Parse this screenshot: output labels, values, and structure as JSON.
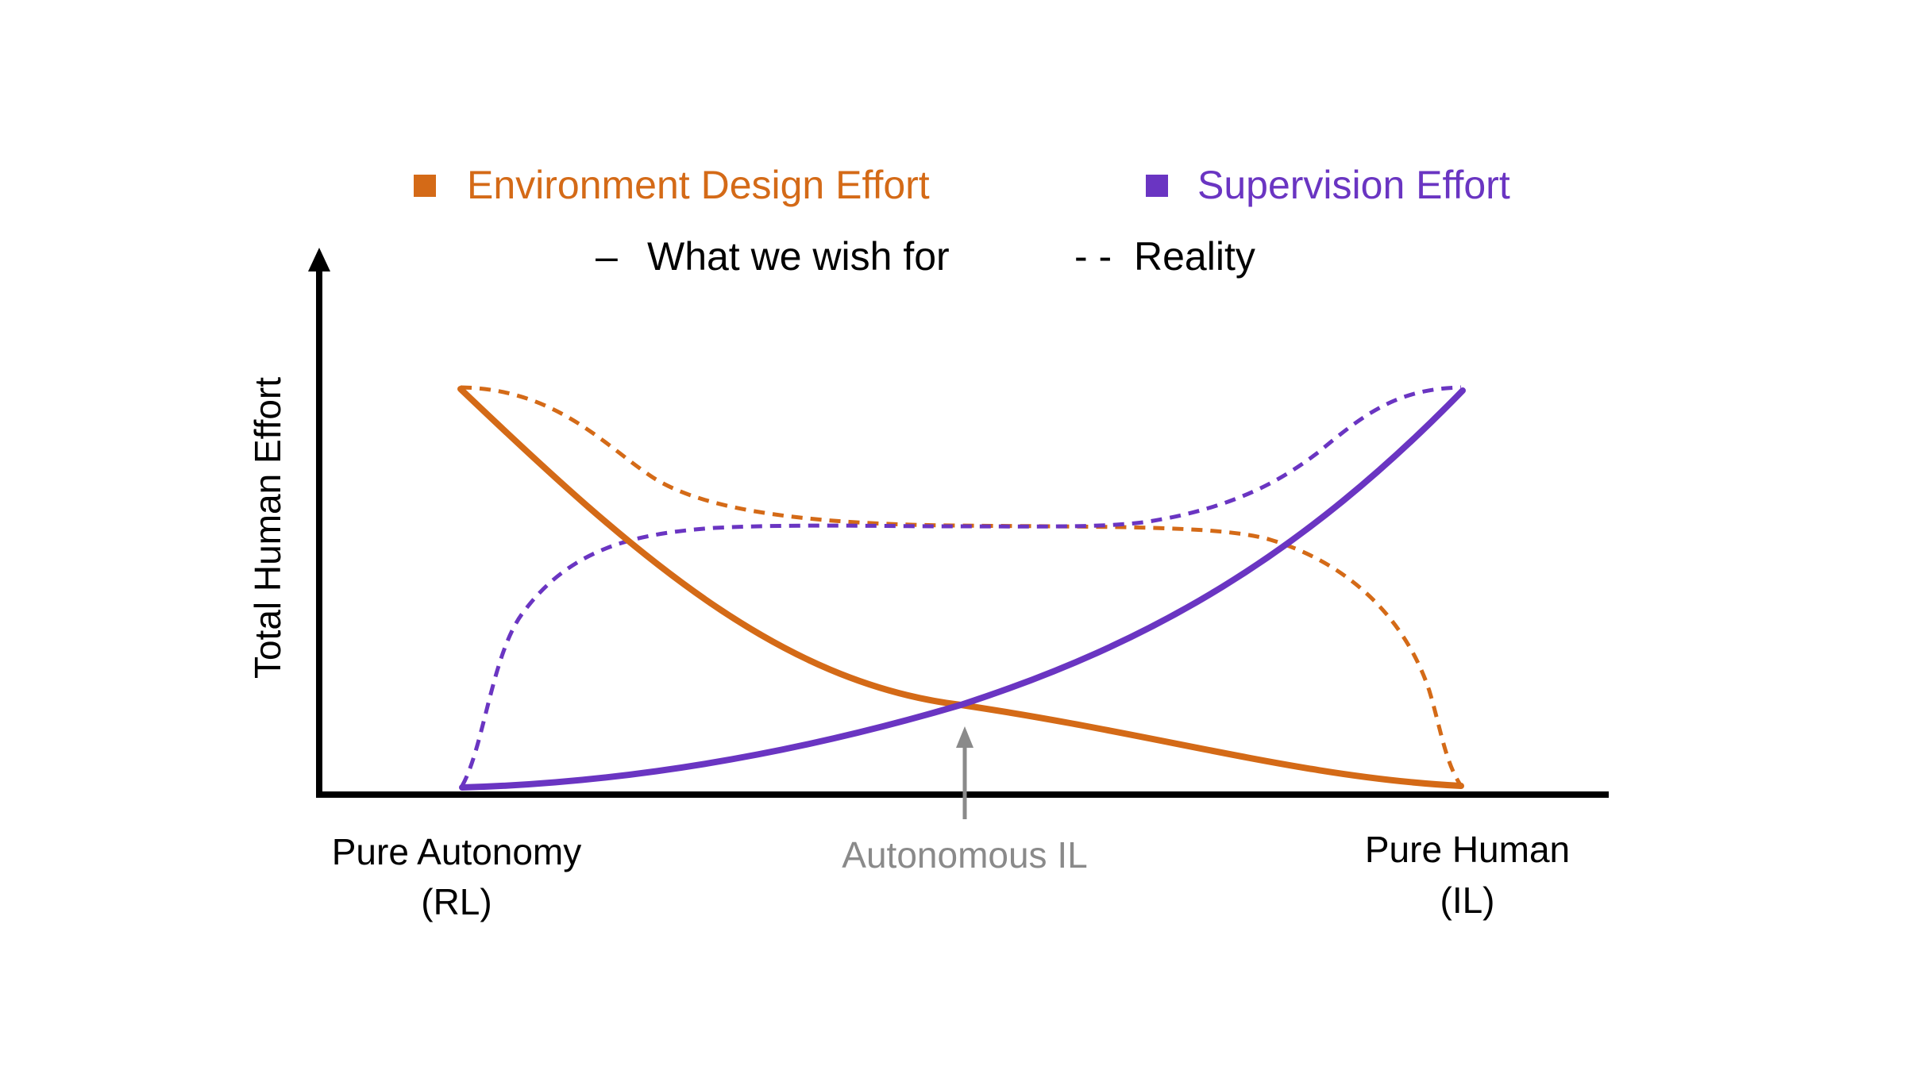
{
  "legend": {
    "environment": {
      "label": "Environment Design Effort",
      "marker": "square",
      "color": "#D46A17"
    },
    "supervision": {
      "label": "Supervision Effort",
      "marker": "square",
      "color": "#6A35C2"
    },
    "solid": {
      "symbol": "–",
      "label": "What we wish for"
    },
    "dashed": {
      "symbol": "- -",
      "label": "Reality"
    }
  },
  "axes": {
    "ylabel": "Total Human Effort",
    "left_label": {
      "line1": "Pure Autonomy",
      "line2": "(RL)"
    },
    "middle_label": "Autonomous IL",
    "right_label": {
      "line1": "Pure Human",
      "line2": "(IL)"
    }
  },
  "colors": {
    "axis": "#000000",
    "annotation": "#8A8A8A"
  },
  "curves": [
    {
      "name": "environment-wish",
      "color": "#D46A17",
      "style": "solid"
    },
    {
      "name": "environment-reality",
      "color": "#D46A17",
      "style": "dashed"
    },
    {
      "name": "supervision-wish",
      "color": "#6A35C2",
      "style": "solid"
    },
    {
      "name": "supervision-reality",
      "color": "#6A35C2",
      "style": "dashed"
    }
  ]
}
